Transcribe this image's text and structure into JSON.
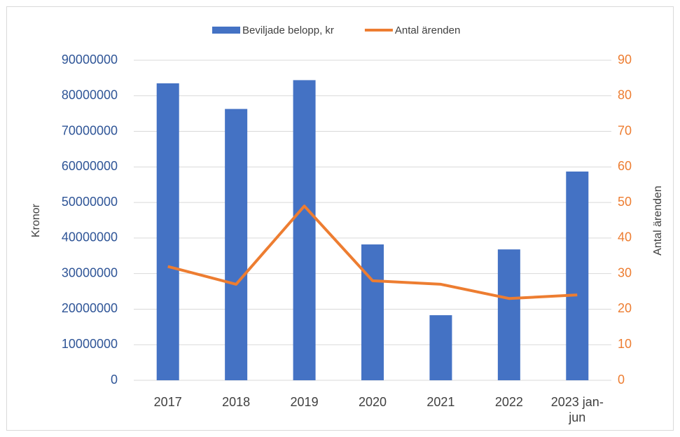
{
  "chart_data": {
    "type": "bar-line",
    "categories": [
      "2017",
      "2018",
      "2019",
      "2020",
      "2021",
      "2022",
      "2023 jan-jun"
    ],
    "series": [
      {
        "name": "Beviljade belopp, kr",
        "type": "bar",
        "color": "#4472c4",
        "values": [
          83500000,
          76300000,
          84400000,
          38200000,
          18300000,
          36800000,
          58700000
        ]
      },
      {
        "name": "Antal ärenden",
        "type": "line",
        "color": "#ed7d31",
        "axis": "y2",
        "values": [
          32,
          27,
          49,
          28,
          27,
          23,
          24
        ]
      }
    ],
    "ylabel": "Kronor",
    "y2label": "Antal ärenden",
    "ylim": [
      0,
      90000000
    ],
    "yticks": [
      0,
      10000000,
      20000000,
      30000000,
      40000000,
      50000000,
      60000000,
      70000000,
      80000000,
      90000000
    ],
    "y2lim": [
      0,
      90
    ],
    "y2ticks": [
      0,
      10,
      20,
      30,
      40,
      50,
      60,
      70,
      80,
      90
    ],
    "grid": true,
    "legend": "top"
  }
}
